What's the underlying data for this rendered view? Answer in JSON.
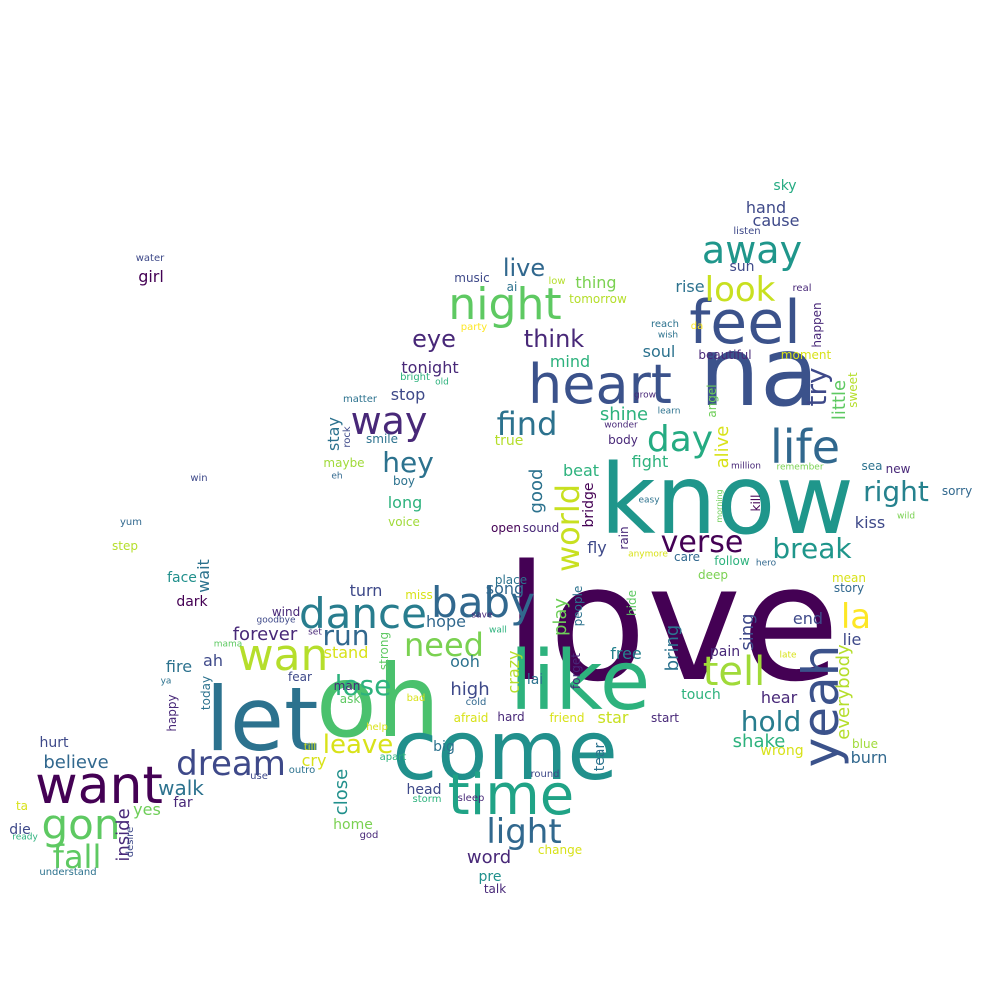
{
  "words": [
    {
      "text": "love",
      "color": "#440154"
    },
    {
      "text": "know",
      "color": "#1f968b"
    },
    {
      "text": "na",
      "color": "#3b528b"
    },
    {
      "text": "oh",
      "color": "#4ac16d"
    },
    {
      "text": "like",
      "color": "#2db27d"
    },
    {
      "text": "let",
      "color": "#2c728e"
    },
    {
      "text": "come",
      "color": "#21908c"
    },
    {
      "text": "want",
      "color": "#440154"
    },
    {
      "text": "feel",
      "color": "#3b528b"
    },
    {
      "text": "heart",
      "color": "#3b528b"
    },
    {
      "text": "time",
      "color": "#20a386"
    },
    {
      "text": "life",
      "color": "#31688e"
    },
    {
      "text": "yeah",
      "color": "#3b528b"
    },
    {
      "text": "night",
      "color": "#5ec962"
    },
    {
      "text": "dance",
      "color": "#287d8e"
    },
    {
      "text": "baby",
      "color": "#31688e"
    },
    {
      "text": "wan",
      "color": "#b5de2b"
    },
    {
      "text": "gon",
      "color": "#5ec962"
    },
    {
      "text": "away",
      "color": "#1f968b"
    },
    {
      "text": "tell",
      "color": "#a0da39"
    },
    {
      "text": "way",
      "color": "#482878"
    },
    {
      "text": "dream",
      "color": "#3e4989"
    },
    {
      "text": "light",
      "color": "#31688e"
    },
    {
      "text": "day",
      "color": "#25ab82"
    },
    {
      "text": "fall",
      "color": "#5ec962"
    },
    {
      "text": "la",
      "color": "#fde725"
    },
    {
      "text": "look",
      "color": "#c8e020"
    },
    {
      "text": "find",
      "color": "#2c728e"
    },
    {
      "text": "need",
      "color": "#7ad151"
    },
    {
      "text": "run",
      "color": "#31688e"
    },
    {
      "text": "world",
      "color": "#c8e020"
    },
    {
      "text": "verse",
      "color": "#440154"
    },
    {
      "text": "break",
      "color": "#1f968b"
    },
    {
      "text": "right",
      "color": "#26828e"
    },
    {
      "text": "hold",
      "color": "#287d8e"
    },
    {
      "text": "lose",
      "color": "#2db27d"
    },
    {
      "text": "hey",
      "color": "#2c728e"
    },
    {
      "text": "leave",
      "color": "#d8e219"
    },
    {
      "text": "try",
      "color": "#3e4989"
    },
    {
      "text": "eye",
      "color": "#482878"
    },
    {
      "text": "think",
      "color": "#482878"
    },
    {
      "text": "live",
      "color": "#31688e"
    },
    {
      "text": "walk",
      "color": "#2c728e"
    },
    {
      "text": "believe",
      "color": "#31688e"
    },
    {
      "text": "crazy",
      "color": "#b5de2b"
    },
    {
      "text": "play",
      "color": "#6ece58"
    },
    {
      "text": "good",
      "color": "#2c728e"
    },
    {
      "text": "sing",
      "color": "#3e4989"
    },
    {
      "text": "bring",
      "color": "#2c728e"
    },
    {
      "text": "close",
      "color": "#21908c"
    },
    {
      "text": "everybody",
      "color": "#b5de2b"
    },
    {
      "text": "word",
      "color": "#482878"
    },
    {
      "text": "shake",
      "color": "#2db27d"
    },
    {
      "text": "alive",
      "color": "#d8e219"
    },
    {
      "text": "little",
      "color": "#5ec962"
    },
    {
      "text": "stay",
      "color": "#2c728e"
    },
    {
      "text": "inside",
      "color": "#482878"
    },
    {
      "text": "wait",
      "color": "#2c728e"
    },
    {
      "text": "stand",
      "color": "#d8e219"
    },
    {
      "text": "high",
      "color": "#3e4989"
    },
    {
      "text": "forever",
      "color": "#482878"
    },
    {
      "text": "hope",
      "color": "#31688e"
    },
    {
      "text": "ooh",
      "color": "#2c728e"
    },
    {
      "text": "fire",
      "color": "#2c728e"
    },
    {
      "text": "free",
      "color": "#26828e"
    },
    {
      "text": "end",
      "color": "#3e4989"
    },
    {
      "text": "lie",
      "color": "#3e4989"
    },
    {
      "text": "hear",
      "color": "#482878"
    },
    {
      "text": "burn",
      "color": "#31688e"
    },
    {
      "text": "cry",
      "color": "#d8e219"
    },
    {
      "text": "tonight",
      "color": "#482878"
    },
    {
      "text": "stop",
      "color": "#3e4989"
    },
    {
      "text": "shine",
      "color": "#2db27d"
    },
    {
      "text": "fight",
      "color": "#2db27d"
    },
    {
      "text": "beat",
      "color": "#2db27d"
    },
    {
      "text": "soul",
      "color": "#2c728e"
    },
    {
      "text": "rise",
      "color": "#2c728e"
    },
    {
      "text": "mind",
      "color": "#2db27d"
    },
    {
      "text": "thing",
      "color": "#7ad151"
    },
    {
      "text": "kiss",
      "color": "#3e4989"
    },
    {
      "text": "song",
      "color": "#31688e"
    },
    {
      "text": "fly",
      "color": "#3e4989"
    },
    {
      "text": "turn",
      "color": "#3e4989"
    },
    {
      "text": "star",
      "color": "#c8e020"
    },
    {
      "text": "long",
      "color": "#2db27d"
    },
    {
      "text": "girl",
      "color": "#440154"
    },
    {
      "text": "ah",
      "color": "#3e4989"
    },
    {
      "text": "yes",
      "color": "#6ece58"
    },
    {
      "text": "true",
      "color": "#b5de2b"
    },
    {
      "text": "tear",
      "color": "#2c728e"
    },
    {
      "text": "hand",
      "color": "#3e4989"
    },
    {
      "text": "cause",
      "color": "#3e4989"
    },
    {
      "text": "sky",
      "color": "#25ab82"
    },
    {
      "text": "sun",
      "color": "#3e4989"
    },
    {
      "text": "die",
      "color": "#3e4989"
    },
    {
      "text": "hurt",
      "color": "#3e4989"
    },
    {
      "text": "far",
      "color": "#482878"
    },
    {
      "text": "pre",
      "color": "#21908c"
    },
    {
      "text": "head",
      "color": "#3e4989"
    },
    {
      "text": "big",
      "color": "#2c728e"
    },
    {
      "text": "home",
      "color": "#7ad151"
    },
    {
      "text": "touch",
      "color": "#2db27d"
    },
    {
      "text": "pain",
      "color": "#482878"
    },
    {
      "text": "bridge",
      "color": "#440154"
    },
    {
      "text": "smile",
      "color": "#2c728e"
    },
    {
      "text": "maybe",
      "color": "#a0da39"
    },
    {
      "text": "boy",
      "color": "#2c728e"
    },
    {
      "text": "voice",
      "color": "#a0da39"
    },
    {
      "text": "dark",
      "color": "#440154"
    },
    {
      "text": "face",
      "color": "#21908c"
    },
    {
      "text": "wind",
      "color": "#482878"
    },
    {
      "text": "lai",
      "color": "#2c728e"
    },
    {
      "text": "man",
      "color": "#482878"
    },
    {
      "text": "ask",
      "color": "#5ec962"
    },
    {
      "text": "hard",
      "color": "#482878"
    },
    {
      "text": "friend",
      "color": "#d8e219"
    },
    {
      "text": "start",
      "color": "#482878"
    },
    {
      "text": "wrong",
      "color": "#d8e219"
    },
    {
      "text": "blue",
      "color": "#a0da39"
    },
    {
      "text": "mean",
      "color": "#d8e219"
    },
    {
      "text": "story",
      "color": "#31688e"
    },
    {
      "text": "sound",
      "color": "#482878"
    },
    {
      "text": "open",
      "color": "#440154"
    },
    {
      "text": "place",
      "color": "#2c728e"
    },
    {
      "text": "miss",
      "color": "#d8e219"
    },
    {
      "text": "care",
      "color": "#31688e"
    },
    {
      "text": "follow",
      "color": "#2db27d"
    },
    {
      "text": "deep",
      "color": "#7ad151"
    },
    {
      "text": "people",
      "color": "#2c728e"
    },
    {
      "text": "forget",
      "color": "#482878"
    },
    {
      "text": "rain",
      "color": "#482878"
    },
    {
      "text": "hide",
      "color": "#5ec962"
    },
    {
      "text": "kill",
      "color": "#440154"
    },
    {
      "text": "body",
      "color": "#482878"
    },
    {
      "text": "beautiful",
      "color": "#482878"
    },
    {
      "text": "moment",
      "color": "#d8e219"
    },
    {
      "text": "angel",
      "color": "#6ece58"
    },
    {
      "text": "sweet",
      "color": "#b5de2b"
    },
    {
      "text": "happen",
      "color": "#482878"
    },
    {
      "text": "new",
      "color": "#482878"
    },
    {
      "text": "sea",
      "color": "#2c728e"
    },
    {
      "text": "sorry",
      "color": "#31688e"
    },
    {
      "text": "strong",
      "color": "#5ec962"
    },
    {
      "text": "today",
      "color": "#2c728e"
    },
    {
      "text": "happy",
      "color": "#482878"
    },
    {
      "text": "fear",
      "color": "#3e4989"
    },
    {
      "text": "afraid",
      "color": "#d8e219"
    },
    {
      "text": "change",
      "color": "#d8e219"
    },
    {
      "text": "talk",
      "color": "#482878"
    },
    {
      "text": "tomorrow",
      "color": "#b5de2b"
    },
    {
      "text": "music",
      "color": "#3e4989"
    },
    {
      "text": "ai",
      "color": "#2c728e"
    },
    {
      "text": "party",
      "color": "#fde725"
    },
    {
      "text": "reach",
      "color": "#2c728e"
    },
    {
      "text": "da",
      "color": "#fde725"
    },
    {
      "text": "real",
      "color": "#482878"
    },
    {
      "text": "listen",
      "color": "#3e4989"
    },
    {
      "text": "low",
      "color": "#b5de2b"
    },
    {
      "text": "water",
      "color": "#3e4989"
    },
    {
      "text": "win",
      "color": "#3e4989"
    },
    {
      "text": "yum",
      "color": "#31688e"
    },
    {
      "text": "step",
      "color": "#b5de2b"
    },
    {
      "text": "ta",
      "color": "#d8e219"
    },
    {
      "text": "ready",
      "color": "#2db27d"
    },
    {
      "text": "understand",
      "color": "#2c728e"
    },
    {
      "text": "desire",
      "color": "#3e4989"
    },
    {
      "text": "god",
      "color": "#482878"
    },
    {
      "text": "storm",
      "color": "#2db27d"
    },
    {
      "text": "sleep",
      "color": "#482878"
    },
    {
      "text": "round",
      "color": "#3e4989"
    },
    {
      "text": "outro",
      "color": "#2c728e"
    },
    {
      "text": "use",
      "color": "#3e4989"
    },
    {
      "text": "apart",
      "color": "#2db27d"
    },
    {
      "text": "help",
      "color": "#d8e219"
    },
    {
      "text": "till",
      "color": "#d8e219"
    },
    {
      "text": "bad",
      "color": "#d8e219"
    },
    {
      "text": "cold",
      "color": "#31688e"
    },
    {
      "text": "save",
      "color": "#482878"
    },
    {
      "text": "wall",
      "color": "#2db27d"
    },
    {
      "text": "set",
      "color": "#482878"
    },
    {
      "text": "goodbye",
      "color": "#3e4989"
    },
    {
      "text": "mama",
      "color": "#5ec962"
    },
    {
      "text": "ya",
      "color": "#2c728e"
    },
    {
      "text": "matter",
      "color": "#2c728e"
    },
    {
      "text": "rock",
      "color": "#3e4989"
    },
    {
      "text": "eh",
      "color": "#31688e"
    },
    {
      "text": "bright",
      "color": "#2db27d"
    },
    {
      "text": "old",
      "color": "#2db27d"
    },
    {
      "text": "grow",
      "color": "#482878"
    },
    {
      "text": "learn",
      "color": "#2c728e"
    },
    {
      "text": "wonder",
      "color": "#482878"
    },
    {
      "text": "million",
      "color": "#482878"
    },
    {
      "text": "remember",
      "color": "#7ad151"
    },
    {
      "text": "easy",
      "color": "#2c728e"
    },
    {
      "text": "morning",
      "color": "#6ece58"
    },
    {
      "text": "anymore",
      "color": "#d8e219"
    },
    {
      "text": "hero",
      "color": "#31688e"
    },
    {
      "text": "wild",
      "color": "#7ad151"
    },
    {
      "text": "late",
      "color": "#d8e219"
    },
    {
      "text": "wish",
      "color": "#2c728e"
    }
  ]
}
